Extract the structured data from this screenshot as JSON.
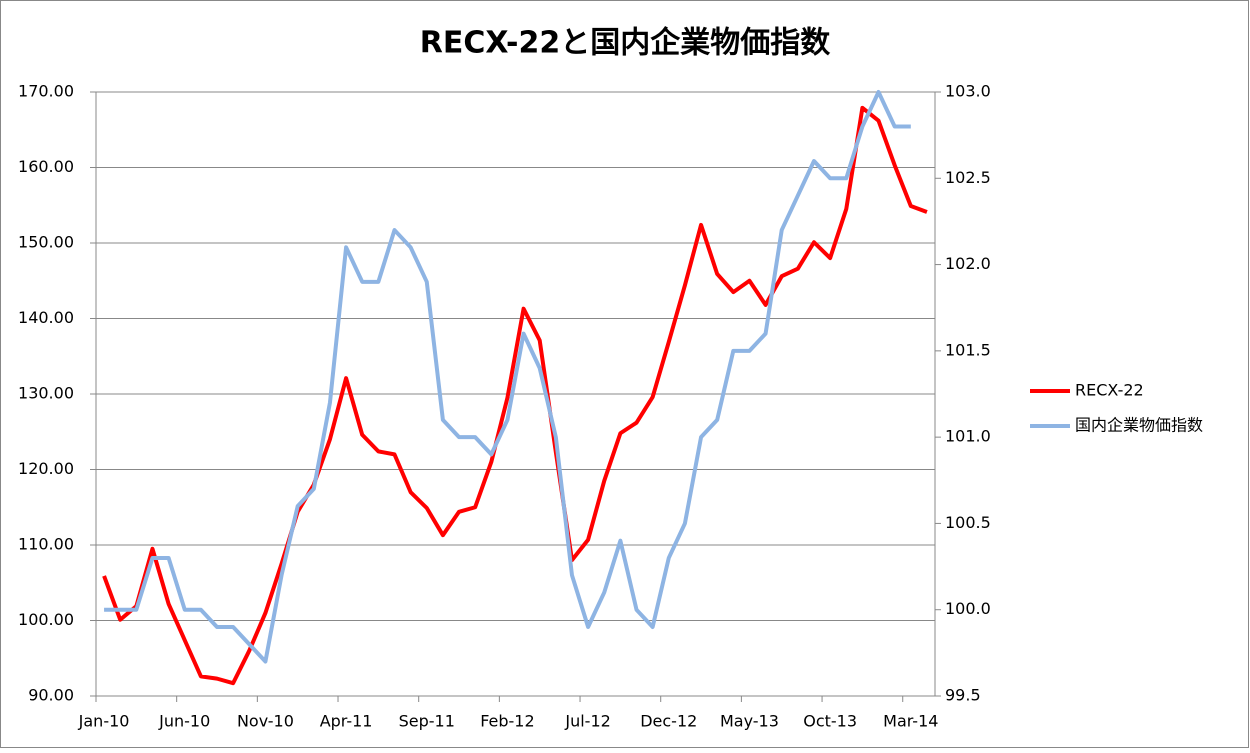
{
  "chart_data": {
    "type": "line",
    "title": "RECX-22と国内企業物価指数",
    "categories": [
      "Jan-10",
      null,
      null,
      null,
      null,
      "Jun-10",
      null,
      null,
      null,
      null,
      "Nov-10",
      null,
      null,
      null,
      null,
      "Apr-11",
      null,
      null,
      null,
      null,
      "Sep-11",
      null,
      null,
      null,
      null,
      "Feb-12",
      null,
      null,
      null,
      null,
      "Jul-12",
      null,
      null,
      null,
      null,
      "Dec-12",
      null,
      null,
      null,
      null,
      "May-13",
      null,
      null,
      null,
      null,
      "Oct-13",
      null,
      null,
      null,
      null,
      "Mar-14",
      null
    ],
    "series": [
      {
        "name": "RECX-22",
        "color": "#ff0000",
        "axis": "y",
        "values": [
          105.9,
          100.1,
          101.9,
          109.5,
          102.2,
          97.4,
          92.6,
          92.3,
          91.7,
          96,
          101,
          107.5,
          114.4,
          118,
          124,
          132.1,
          124.6,
          122.4,
          122,
          117,
          114.9,
          111.3,
          114.4,
          115,
          121,
          129.5,
          141.3,
          137.1,
          122.3,
          108,
          110.7,
          118.5,
          124.8,
          126.2,
          129.6,
          136.9,
          144.4,
          152.4,
          145.9,
          143.5,
          145,
          141.8,
          145.6,
          146.6,
          150.1,
          148,
          154.5,
          167.9,
          166.2,
          160.3,
          154.9,
          154.1
        ]
      },
      {
        "name": "国内企業物価指数",
        "color": "#8eb4e3",
        "axis": "y2",
        "values": [
          100.0,
          100.0,
          100.0,
          100.3,
          100.3,
          100.0,
          100.0,
          99.9,
          99.9,
          99.8,
          99.7,
          100.2,
          100.6,
          100.7,
          101.2,
          102.1,
          101.9,
          101.9,
          102.2,
          102.1,
          101.9,
          101.1,
          101.0,
          101.0,
          100.9,
          101.1,
          101.6,
          101.4,
          101.0,
          100.2,
          99.9,
          100.1,
          100.4,
          100.0,
          99.9,
          100.3,
          100.5,
          101.0,
          101.1,
          101.5,
          101.5,
          101.6,
          102.2,
          102.4,
          102.6,
          102.5,
          102.5,
          102.8,
          103.0,
          102.8,
          102.8,
          null
        ]
      }
    ],
    "ylim": [
      90,
      170
    ],
    "yticks": [
      {
        "value": 90,
        "label": "90.00"
      },
      {
        "value": 100,
        "label": "100.00"
      },
      {
        "value": 110,
        "label": "110.00"
      },
      {
        "value": 120,
        "label": "120.00"
      },
      {
        "value": 130,
        "label": "130.00"
      },
      {
        "value": 140,
        "label": "140.00"
      },
      {
        "value": 150,
        "label": "150.00"
      },
      {
        "value": 160,
        "label": "160.00"
      },
      {
        "value": 170,
        "label": "170.00"
      }
    ],
    "y2lim": [
      99.5,
      103
    ],
    "y2ticks": [
      99.5,
      {
        "value": 100,
        "label": "100.0"
      },
      100.5,
      {
        "value": 101,
        "label": "101.0"
      },
      101.5,
      {
        "value": 102,
        "label": "102.0"
      },
      102.5,
      {
        "value": 103,
        "label": "103.0"
      }
    ],
    "grid": true,
    "legend": "right"
  }
}
